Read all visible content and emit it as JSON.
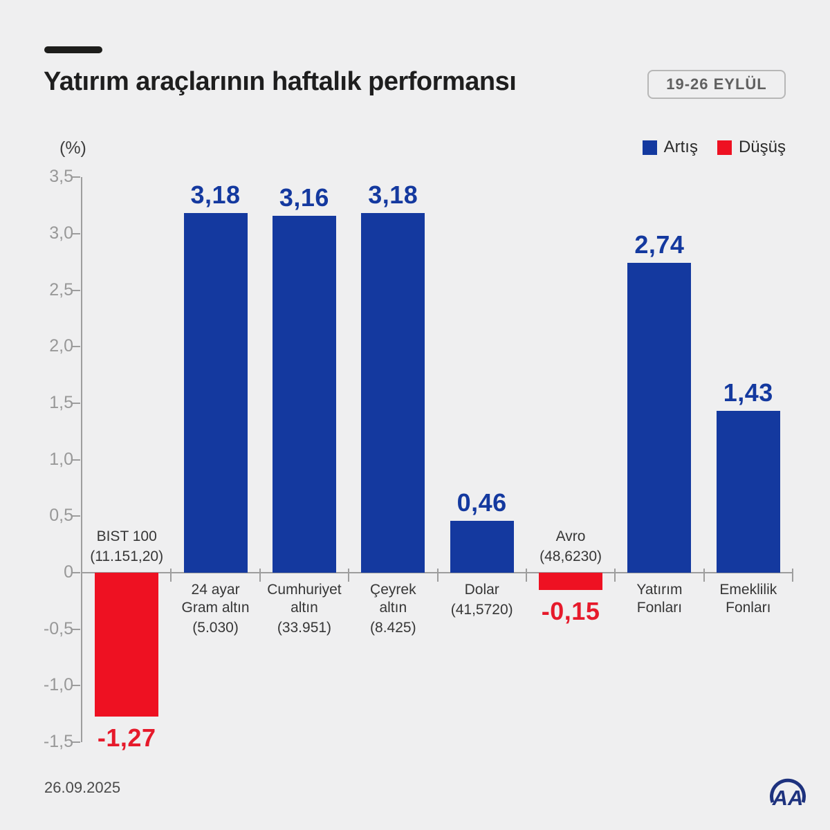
{
  "header": {
    "title": "Yatırım araçlarının haftalık performansı",
    "date_badge": "19-26 EYLÜL"
  },
  "legend": [
    {
      "label": "Artış",
      "color": "#14399F"
    },
    {
      "label": "Düşüş",
      "color": "#EE1122"
    }
  ],
  "chart_data": {
    "type": "bar",
    "title": "Yatırım araçlarının haftalık performansı",
    "unit": "(%)",
    "ylim": [
      -1.5,
      3.5
    ],
    "ytick_step": 0.5,
    "ytick_labels": [
      "3,5",
      "3,0",
      "2,5",
      "2,0",
      "1,5",
      "1,0",
      "0,5",
      "0",
      "-0,5",
      "-1,0",
      "-1,5"
    ],
    "grid": false,
    "legend_position": "top-right",
    "bars": [
      {
        "name_lines": [
          "BIST 100"
        ],
        "detail": "(11.151,20)",
        "value": -1.27,
        "value_label": "-1,27"
      },
      {
        "name_lines": [
          "24 ayar",
          "Gram altın"
        ],
        "detail": "(5.030)",
        "value": 3.18,
        "value_label": "3,18"
      },
      {
        "name_lines": [
          "Cumhuriyet",
          "altın"
        ],
        "detail": "(33.951)",
        "value": 3.16,
        "value_label": "3,16"
      },
      {
        "name_lines": [
          "Çeyrek",
          "altın"
        ],
        "detail": "(8.425)",
        "value": 3.18,
        "value_label": "3,18"
      },
      {
        "name_lines": [
          "Dolar"
        ],
        "detail": "(41,5720)",
        "value": 0.46,
        "value_label": "0,46"
      },
      {
        "name_lines": [
          "Avro"
        ],
        "detail": "(48,6230)",
        "value": -0.15,
        "value_label": "-0,15"
      },
      {
        "name_lines": [
          "Yatırım",
          "Fonları"
        ],
        "detail": null,
        "value": 2.74,
        "value_label": "2,74"
      },
      {
        "name_lines": [
          "Emeklilik",
          "Fonları"
        ],
        "detail": null,
        "value": 1.43,
        "value_label": "1,43"
      }
    ],
    "colors": {
      "positive": "#14399F",
      "negative": "#EE1122",
      "positive_text": "#14399F",
      "negative_text": "#E61A2B"
    }
  },
  "footer": {
    "date": "26.09.2025",
    "logo": "AA"
  }
}
